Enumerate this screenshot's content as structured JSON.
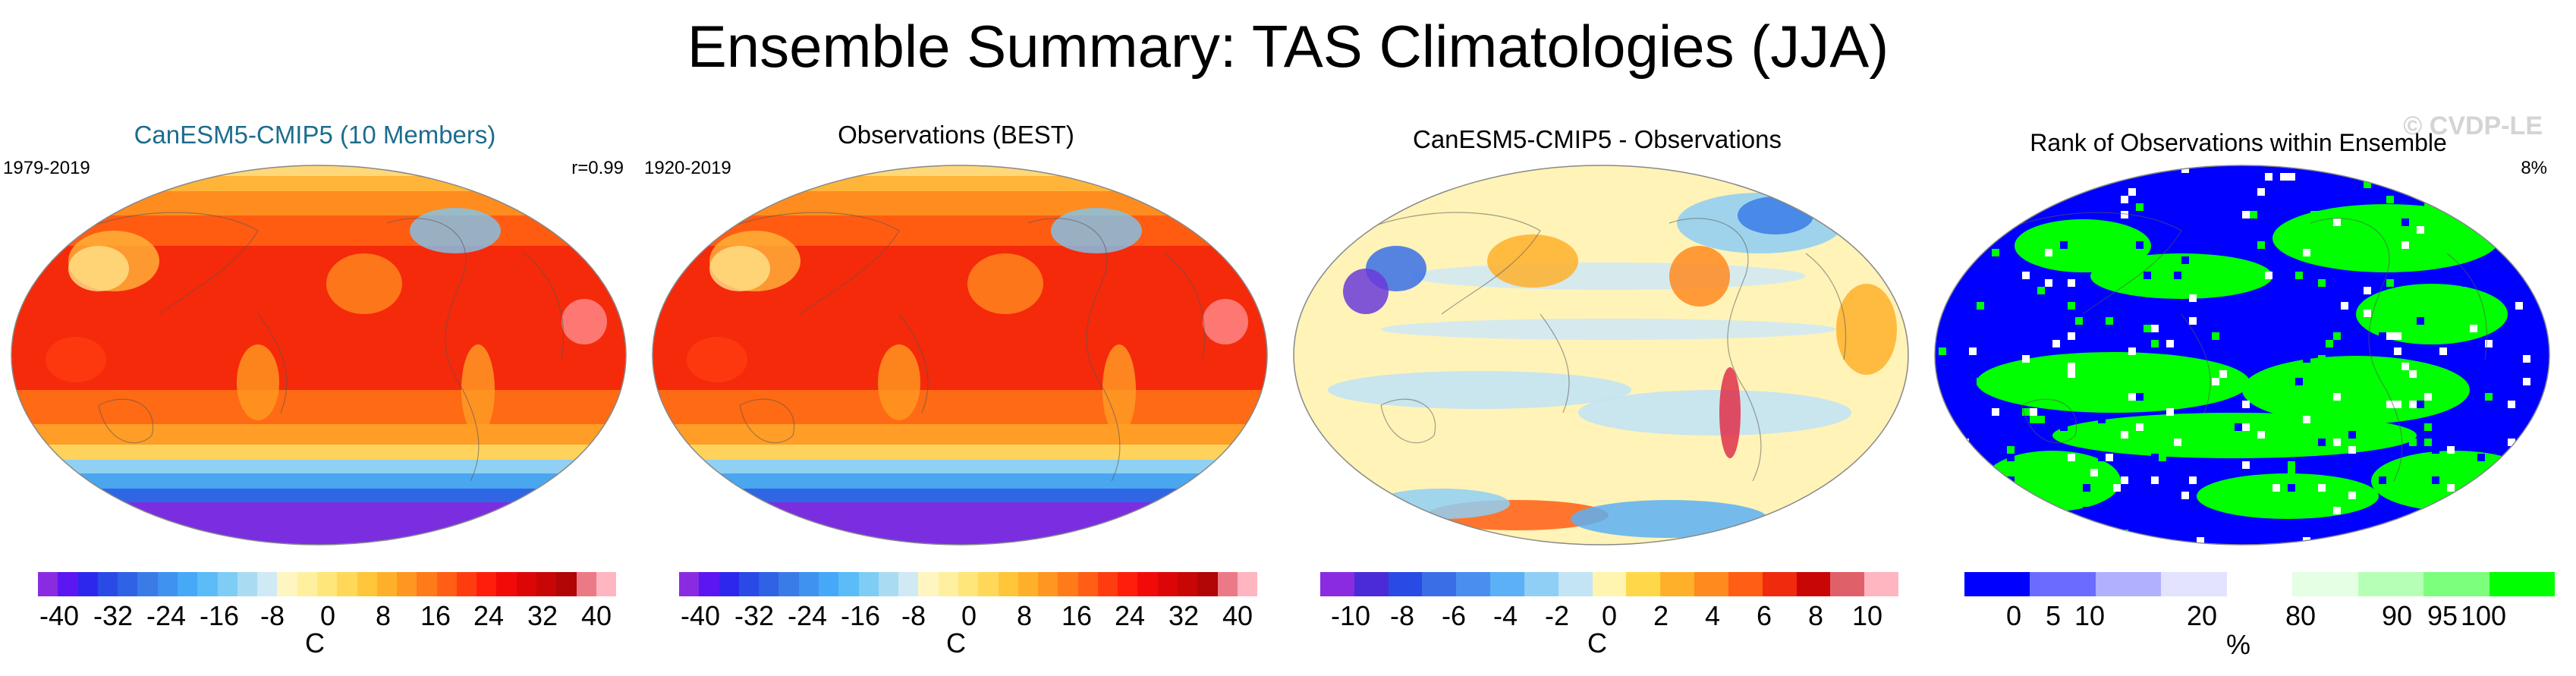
{
  "figure": {
    "title": "Ensemble Summary: TAS Climatologies (JJA)",
    "watermark": "© CVDP-LE"
  },
  "panels": [
    {
      "id": "ensemble-mean",
      "title": "CanESM5-CMIP5 (10 Members)",
      "period": "1979-2019",
      "stat": "r=0.99",
      "map_style": "climatology",
      "colorbar": {
        "ticks": [
          "-40",
          "-32",
          "-24",
          "-16",
          "-8",
          "0",
          "8",
          "16",
          "24",
          "32",
          "40"
        ],
        "units": "C",
        "colors": [
          "#8a2be2",
          "#5b16f2",
          "#2d27ee",
          "#2a4ae6",
          "#2f62e4",
          "#3a7be8",
          "#3f92f0",
          "#45a9f7",
          "#5cbcf7",
          "#7fcdf5",
          "#a9dcf2",
          "#cfe9f5",
          "#fff5c0",
          "#fff0a0",
          "#ffe67a",
          "#ffd85a",
          "#ffc63c",
          "#ffb02a",
          "#ff9620",
          "#ff7a18",
          "#ff5e14",
          "#ff3c10",
          "#ff1e0c",
          "#f20a08",
          "#dc0606",
          "#c80606",
          "#b00606",
          "#ec7a86",
          "#ffb6c0"
        ]
      }
    },
    {
      "id": "observations",
      "title": "Observations (BEST)",
      "period": "1920-2019",
      "stat": "",
      "map_style": "climatology",
      "colorbar": {
        "ticks": [
          "-40",
          "-32",
          "-24",
          "-16",
          "-8",
          "0",
          "8",
          "16",
          "24",
          "32",
          "40"
        ],
        "units": "C",
        "colors": [
          "#8a2be2",
          "#5b16f2",
          "#2d27ee",
          "#2a4ae6",
          "#2f62e4",
          "#3a7be8",
          "#3f92f0",
          "#45a9f7",
          "#5cbcf7",
          "#7fcdf5",
          "#a9dcf2",
          "#cfe9f5",
          "#fff5c0",
          "#fff0a0",
          "#ffe67a",
          "#ffd85a",
          "#ffc63c",
          "#ffb02a",
          "#ff9620",
          "#ff7a18",
          "#ff5e14",
          "#ff3c10",
          "#ff1e0c",
          "#f20a08",
          "#dc0606",
          "#c80606",
          "#b00606",
          "#ec7a86",
          "#ffb6c0"
        ]
      }
    },
    {
      "id": "difference",
      "title": "CanESM5-CMIP5 - Observations",
      "period": "",
      "stat": "",
      "map_style": "difference",
      "colorbar": {
        "ticks": [
          "-10",
          "-8",
          "-6",
          "-4",
          "-2",
          "0",
          "2",
          "4",
          "6",
          "8",
          "10"
        ],
        "units": "C",
        "colors": [
          "#8a2be2",
          "#4b2bd8",
          "#2a4ae6",
          "#3a6ee6",
          "#4a8ef0",
          "#5cb0f5",
          "#8fcff5",
          "#c2e4f5",
          "#fff5b0",
          "#ffd84a",
          "#ffb02a",
          "#ff8a1e",
          "#ff5e14",
          "#f02a0c",
          "#c80606",
          "#e0606a",
          "#ffb6c0"
        ]
      }
    },
    {
      "id": "rank",
      "title": "Rank of Observations within Ensemble",
      "period": "",
      "stat": "8%",
      "map_style": "rank",
      "colorbar": {
        "ticks": [
          "0",
          "5",
          "10",
          "20",
          "80",
          "90",
          "95",
          "100"
        ],
        "units": "%",
        "colors": [
          "#0000ff",
          "#6b6bff",
          "#b0b0ff",
          "#e3e3ff",
          "#ffffff",
          "#e4ffe4",
          "#b6ffb6",
          "#7cff7c",
          "#00ff00"
        ]
      }
    }
  ]
}
